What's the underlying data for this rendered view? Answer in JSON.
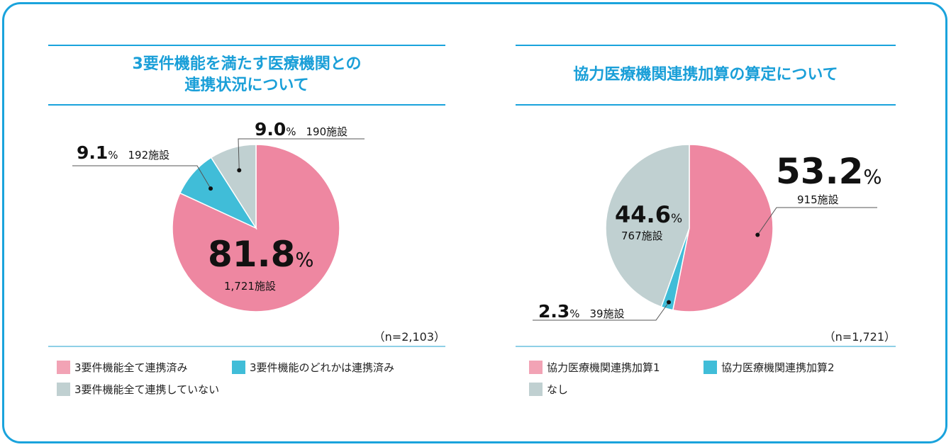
{
  "colors": {
    "border": "#1aa3dc",
    "title": "#1a9fd8",
    "pink": "#ee87a1",
    "blue": "#40bdd8",
    "gray": "#c0d0d1"
  },
  "chart_data": [
    {
      "type": "pie",
      "title": "3要件機能を満たす医療機関との連携状況について",
      "title_lines": [
        "3要件機能を満たす医療機関との",
        "連携状況について"
      ],
      "n_label": "（n=2,103）",
      "start": "12 o'clock",
      "direction": "clockwise",
      "slices": [
        {
          "name": "3要件機能全て連携済み",
          "percent": 81.8,
          "count_label": "1,721施設",
          "color": "#ee87a1"
        },
        {
          "name": "3要件機能のどれかは連携済み",
          "percent": 9.1,
          "count_label": "192施設",
          "color": "#40bdd8"
        },
        {
          "name": "3要件機能全て連携していない",
          "percent": 9.0,
          "count_label": "190施設",
          "color": "#c0d0d1"
        }
      ],
      "labels": [
        {
          "value": "81.8",
          "unit": "%",
          "count": "1,721施設"
        },
        {
          "value": "9.1",
          "unit": "%",
          "count": "192施設"
        },
        {
          "value": "9.0",
          "unit": "%",
          "count": "190施設"
        }
      ],
      "legend": [
        "3要件機能全て連携済み",
        "3要件機能のどれかは連携済み",
        "3要件機能全て連携していない"
      ]
    },
    {
      "type": "pie",
      "title": "協力医療機関連携加算の算定について",
      "title_lines": [
        "協力医療機関連携加算の算定について"
      ],
      "n_label": "（n=1,721）",
      "start": "12 o'clock",
      "direction": "clockwise",
      "slices": [
        {
          "name": "協力医療機関連携加算1",
          "percent": 53.2,
          "count_label": "915施設",
          "color": "#ee87a1"
        },
        {
          "name": "協力医療機関連携加算2",
          "percent": 2.3,
          "count_label": "39施設",
          "color": "#40bdd8"
        },
        {
          "name": "なし",
          "percent": 44.6,
          "count_label": "767施設",
          "color": "#c0d0d1"
        }
      ],
      "labels": [
        {
          "value": "53.2",
          "unit": "%",
          "count": "915施設"
        },
        {
          "value": "2.3",
          "unit": "%",
          "count": "39施設"
        },
        {
          "value": "44.6",
          "unit": "%",
          "count": "767施設"
        }
      ],
      "legend": [
        "協力医療機関連携加算1",
        "協力医療機関連携加算2",
        "なし"
      ]
    }
  ]
}
